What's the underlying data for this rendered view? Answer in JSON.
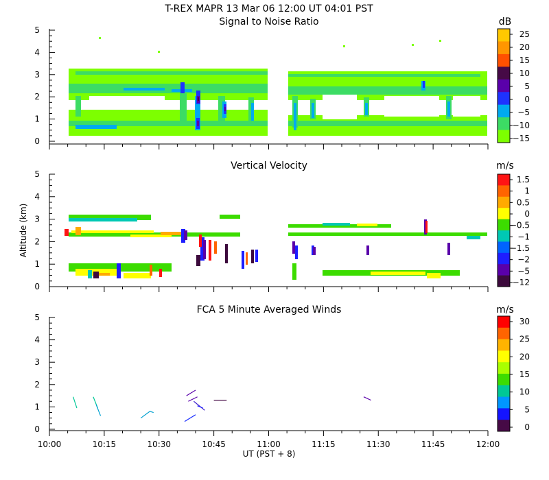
{
  "header": {
    "main_title": "T-REX   MAPR 13 Mar 06   12:00 UT  04:01  PST"
  },
  "x_axis": {
    "label": "UT  (PST + 8)",
    "ticks": [
      "10:00",
      "10:15",
      "10:30",
      "10:45",
      "11:00",
      "11:15",
      "11:30",
      "11:45",
      "12:00"
    ],
    "range_minutes": [
      0,
      120
    ]
  },
  "y_axis": {
    "label": "Altitude  (km)",
    "ticks": [
      "0",
      "1",
      "2",
      "3",
      "4",
      "5"
    ],
    "range_km": [
      0,
      5
    ]
  },
  "chart_data": [
    {
      "type": "heatmap",
      "title": "Signal to Noise Ratio",
      "unit": "dB",
      "colorbar_ticks": [
        "25",
        "20",
        "15",
        "10",
        "5",
        "0",
        "−5",
        "−10",
        "−15"
      ],
      "colorbar_colors": [
        "#ffc800",
        "#ff9600",
        "#ff5000",
        "#460a46",
        "#5a00aa",
        "#1e32ff",
        "#00aaf0",
        "#3cdc64",
        "#7dff00"
      ],
      "data_gap_minutes": [
        57,
        61
      ],
      "layers_km": [
        [
          0.3,
          1.0
        ],
        [
          1.0,
          1.9
        ],
        [
          2.1,
          3.2
        ]
      ]
    },
    {
      "type": "heatmap",
      "title": "Vertical Velocity",
      "unit": "m/s",
      "colorbar_ticks": [
        "1.5",
        "1",
        "0.5",
        "0",
        "−0.5",
        "−1",
        "−1.5",
        "−2",
        "−5",
        "−12"
      ],
      "colorbar_colors": [
        "#ff1414",
        "#ff6400",
        "#ffaa00",
        "#ffff00",
        "#3cdc00",
        "#00c8b4",
        "#0064ff",
        "#1e1eff",
        "#5a00aa",
        "#3c0a3c"
      ],
      "data_gap_minutes": [
        57,
        61
      ]
    },
    {
      "type": "line",
      "title": "FCA 5 Minute Averaged Winds",
      "unit": "m/s",
      "colorbar_ticks": [
        "30",
        "25",
        "20",
        "15",
        "10",
        "5",
        "0"
      ],
      "colorbar_colors": [
        "#ff0000",
        "#ff6400",
        "#ffb400",
        "#ffff00",
        "#aaff00",
        "#3cdc00",
        "#00c896",
        "#0096ff",
        "#1414ff",
        "#460a46"
      ],
      "segments": [
        {
          "t0": 6.5,
          "z0": 1.45,
          "t1": 7.5,
          "z1": 0.95,
          "color": "#00c896"
        },
        {
          "t0": 12.0,
          "z0": 1.45,
          "t1": 13.2,
          "z1": 0.95,
          "color": "#00c896"
        },
        {
          "t0": 12.8,
          "z0": 1.1,
          "t1": 14.0,
          "z1": 0.6,
          "color": "#00a0d0"
        },
        {
          "t0": 25.0,
          "z0": 0.5,
          "t1": 27.5,
          "z1": 0.8,
          "color": "#00a0d0"
        },
        {
          "t0": 27.5,
          "z0": 0.8,
          "t1": 28.5,
          "z1": 0.75,
          "color": "#00a0d0"
        },
        {
          "t0": 37.5,
          "z0": 1.5,
          "t1": 40.0,
          "z1": 1.75,
          "color": "#5a00aa"
        },
        {
          "t0": 38.0,
          "z0": 1.25,
          "t1": 40.5,
          "z1": 1.45,
          "color": "#5a00aa"
        },
        {
          "t0": 39.5,
          "z0": 1.25,
          "t1": 42.5,
          "z1": 0.85,
          "color": "#3c1ecc"
        },
        {
          "t0": 40.5,
          "z0": 1.05,
          "t1": 42.0,
          "z1": 0.95,
          "color": "#1e1eff"
        },
        {
          "t0": 37.0,
          "z0": 0.35,
          "t1": 40.0,
          "z1": 0.65,
          "color": "#1e32ff"
        },
        {
          "t0": 45.0,
          "z0": 1.3,
          "t1": 48.5,
          "z1": 1.3,
          "color": "#460a46"
        },
        {
          "t0": 86.0,
          "z0": 1.45,
          "t1": 88.0,
          "z1": 1.3,
          "color": "#5a00aa"
        }
      ]
    }
  ]
}
